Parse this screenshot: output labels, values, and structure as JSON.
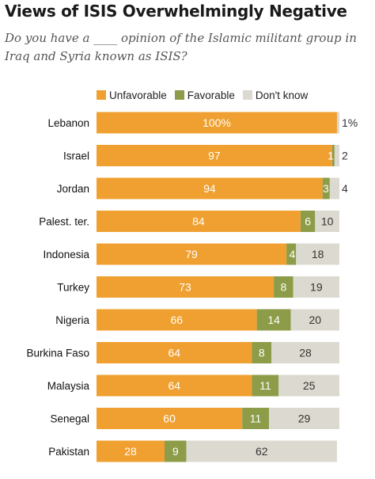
{
  "title": "Views of ISIS Overwhelmingly Negative",
  "subtitle": "Do you have a ____ opinion of the Islamic militant group in Iraq and Syria known as ISIS?",
  "colors": {
    "unfavorable": "#F0A030",
    "favorable": "#8C9C48",
    "dont_know": "#DCDAD0",
    "label_on_dark": "#FFFFFF",
    "label_on_light": "#333333"
  },
  "chart_data": {
    "type": "bar",
    "orientation": "horizontal",
    "stacked": true,
    "title": "Views of ISIS Overwhelmingly Negative",
    "subtitle": "Do you have a ____ opinion of the Islamic militant group in Iraq and Syria known as ISIS?",
    "xlim": [
      0,
      100
    ],
    "grid": false,
    "legend_position": "top",
    "categories": [
      "Lebanon",
      "Israel",
      "Jordan",
      "Palest. ter.",
      "Indonesia",
      "Turkey",
      "Nigeria",
      "Burkina Faso",
      "Malaysia",
      "Senegal",
      "Pakistan"
    ],
    "series": [
      {
        "name": "Unfavorable",
        "values": [
          100,
          97,
          94,
          84,
          79,
          73,
          66,
          64,
          64,
          60,
          28
        ],
        "labels": [
          "100%",
          "97",
          "94",
          "84",
          "79",
          "73",
          "66",
          "64",
          "64",
          "60",
          "28"
        ]
      },
      {
        "name": "Favorable",
        "values": [
          0,
          1,
          3,
          6,
          4,
          8,
          14,
          8,
          11,
          11,
          9
        ],
        "labels": [
          "",
          "1",
          "3",
          "6",
          "4",
          "8",
          "14",
          "8",
          "11",
          "11",
          "9"
        ]
      },
      {
        "name": "Don't know",
        "values": [
          1,
          2,
          4,
          10,
          18,
          19,
          20,
          28,
          25,
          29,
          62
        ],
        "labels": [
          "1%",
          "2",
          "4",
          "10",
          "18",
          "19",
          "20",
          "28",
          "25",
          "29",
          "62"
        ]
      }
    ]
  }
}
